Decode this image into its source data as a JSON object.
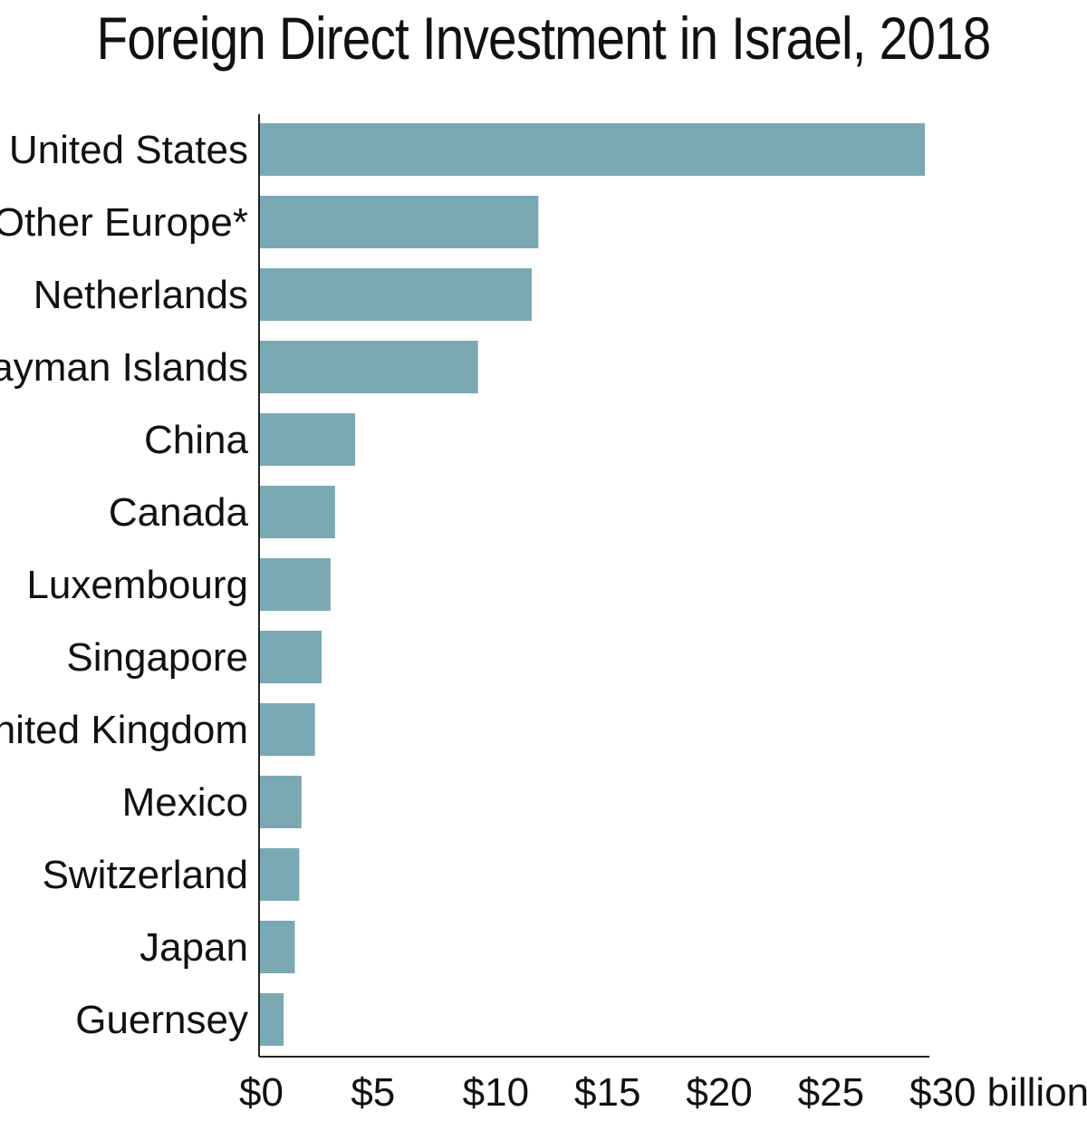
{
  "chart_data": {
    "type": "bar",
    "orientation": "horizontal",
    "title": "Foreign Direct Investment in Israel, 2018",
    "categories": [
      "United States",
      "Other Europe*",
      "Netherlands",
      "Cayman Islands",
      "China",
      "Canada",
      "Luxembourg",
      "Singapore",
      "United Kingdom",
      "Mexico",
      "Switzerland",
      "Japan",
      "Guernsey"
    ],
    "values": [
      29.8,
      12.5,
      12.2,
      9.8,
      4.3,
      3.4,
      3.2,
      2.8,
      2.5,
      1.9,
      1.8,
      1.6,
      1.1
    ],
    "unit": "billion",
    "xlim": [
      0,
      30
    ],
    "xticks": [
      0,
      5,
      10,
      15,
      20,
      25,
      30
    ],
    "xtick_labels": [
      "$0",
      "$5",
      "$10",
      "$15",
      "$20",
      "$25",
      "$30 billion"
    ],
    "bar_color": "#7aa9b4",
    "grid": false,
    "legend": "none"
  }
}
